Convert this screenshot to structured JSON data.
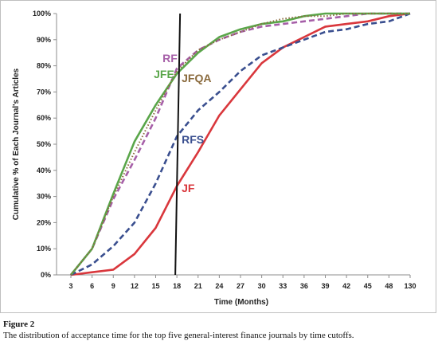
{
  "caption": {
    "figure": "Figure 2",
    "text": "The distribution of acceptance time for the top five general-interest finance journals by time cutoffs."
  },
  "chart_data": {
    "type": "line",
    "title": "",
    "xlabel": "Time (Months)",
    "ylabel": "Cumulative % of Each Journal's Articles",
    "categories": [
      "3",
      "6",
      "9",
      "12",
      "15",
      "18",
      "21",
      "24",
      "27",
      "30",
      "33",
      "36",
      "39",
      "42",
      "45",
      "48",
      "130"
    ],
    "ylim": [
      0,
      100
    ],
    "yticks": [
      "0%",
      "10%",
      "20%",
      "30%",
      "40%",
      "50%",
      "60%",
      "70%",
      "80%",
      "90%",
      "100%"
    ],
    "grid": false,
    "legend": "none (labels placed beside the lines)",
    "vertical_marker": "18",
    "series": [
      {
        "name": "JF",
        "color": "#d9373c",
        "dash": "solid",
        "values": [
          0,
          1,
          2,
          8,
          18,
          34,
          47,
          61,
          71,
          81,
          87,
          91,
          95,
          96,
          97,
          99,
          100
        ]
      },
      {
        "name": "RFS",
        "color": "#3a4f8f",
        "dash": "dashed",
        "values": [
          0,
          4,
          11,
          20,
          35,
          53,
          63,
          70,
          78,
          84,
          87,
          90,
          93,
          94,
          96,
          97,
          100
        ]
      },
      {
        "name": "RF",
        "color": "#a65fa8",
        "dash": "dashed",
        "values": [
          0,
          10,
          29,
          44,
          60,
          79,
          86,
          90,
          93,
          95,
          96,
          97,
          98,
          99,
          100,
          100,
          100
        ]
      },
      {
        "name": "JFE",
        "color": "#5aa64a",
        "dash": "solid",
        "values": [
          0,
          10,
          31,
          51,
          65,
          77,
          85,
          91,
          94,
          96,
          97,
          99,
          100,
          100,
          100,
          100,
          100
        ]
      },
      {
        "name": "JFQA",
        "color": "#8a6a3d",
        "dash": "dotted",
        "values": [
          0,
          10,
          30,
          47,
          63,
          78,
          86,
          90,
          93,
          96,
          98,
          99,
          99,
          100,
          100,
          100,
          100
        ]
      }
    ]
  }
}
